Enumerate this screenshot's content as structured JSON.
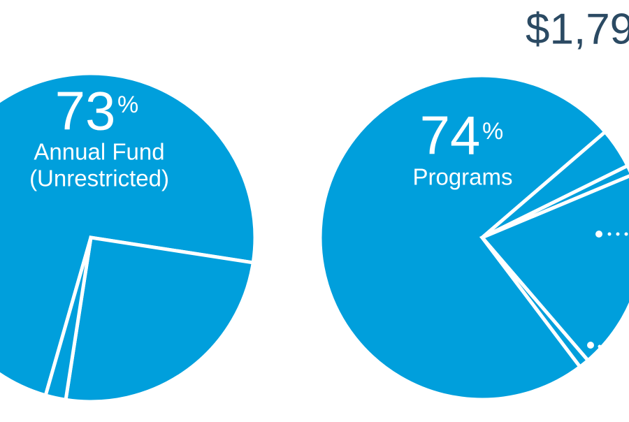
{
  "header_text": "$1,79",
  "chart_data": [
    {
      "type": "pie",
      "color": "#009fdc",
      "unit": "%",
      "values": [
        73,
        25,
        2
      ],
      "label_lines": [
        "Annual Fund",
        "(Unrestricted)"
      ]
    },
    {
      "type": "pie",
      "color": "#009fdc",
      "unit": "%",
      "values": [
        74,
        4,
        1,
        20,
        1
      ],
      "label_lines": [
        "Programs"
      ]
    }
  ]
}
